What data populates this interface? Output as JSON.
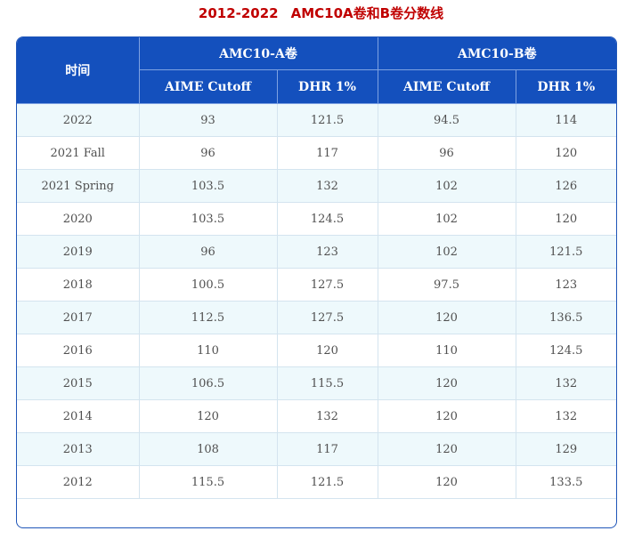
{
  "title": {
    "years": "2012-2022",
    "text": "AMC10A卷和B卷分数线"
  },
  "header": {
    "year_col": "时间",
    "group_a": "AMC10-A卷",
    "group_b": "AMC10-B卷",
    "a_cutoff": "AIME Cutoff",
    "a_dhr": "DHR 1%",
    "b_cutoff": "AIME Cutoff",
    "b_dhr": "DHR 1%"
  },
  "rows": [
    {
      "year": "2022",
      "a_cutoff": "93",
      "a_dhr": "121.5",
      "b_cutoff": "94.5",
      "b_dhr": "114"
    },
    {
      "year": "2021 Fall",
      "a_cutoff": "96",
      "a_dhr": "117",
      "b_cutoff": "96",
      "b_dhr": "120"
    },
    {
      "year": "2021 Spring",
      "a_cutoff": "103.5",
      "a_dhr": "132",
      "b_cutoff": "102",
      "b_dhr": "126"
    },
    {
      "year": "2020",
      "a_cutoff": "103.5",
      "a_dhr": "124.5",
      "b_cutoff": "102",
      "b_dhr": "120"
    },
    {
      "year": "2019",
      "a_cutoff": "96",
      "a_dhr": "123",
      "b_cutoff": "102",
      "b_dhr": "121.5"
    },
    {
      "year": "2018",
      "a_cutoff": "100.5",
      "a_dhr": "127.5",
      "b_cutoff": "97.5",
      "b_dhr": "123"
    },
    {
      "year": "2017",
      "a_cutoff": "112.5",
      "a_dhr": "127.5",
      "b_cutoff": "120",
      "b_dhr": "136.5"
    },
    {
      "year": "2016",
      "a_cutoff": "110",
      "a_dhr": "120",
      "b_cutoff": "110",
      "b_dhr": "124.5"
    },
    {
      "year": "2015",
      "a_cutoff": "106.5",
      "a_dhr": "115.5",
      "b_cutoff": "120",
      "b_dhr": "132"
    },
    {
      "year": "2014",
      "a_cutoff": "120",
      "a_dhr": "132",
      "b_cutoff": "120",
      "b_dhr": "132"
    },
    {
      "year": "2013",
      "a_cutoff": "108",
      "a_dhr": "117",
      "b_cutoff": "120",
      "b_dhr": "129"
    },
    {
      "year": "2012",
      "a_cutoff": "115.5",
      "a_dhr": "121.5",
      "b_cutoff": "120",
      "b_dhr": "133.5"
    }
  ],
  "colors": {
    "title": "#c00000",
    "header_bg": "#1450bd",
    "header_text": "#ffffff",
    "stripe_row": "#eef9fc",
    "border": "#1f55b8"
  }
}
